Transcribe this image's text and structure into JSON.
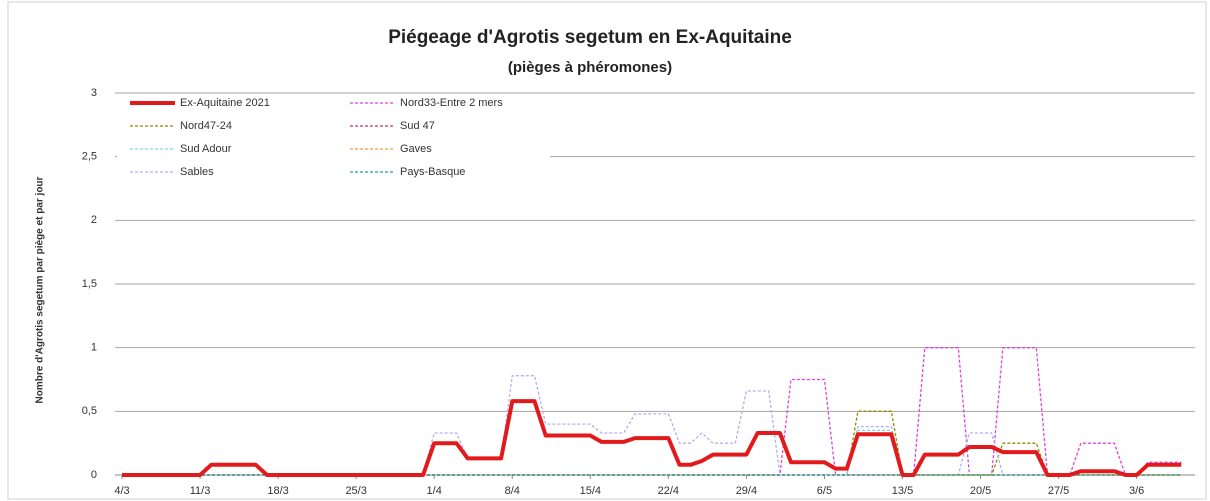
{
  "chart_data": {
    "type": "line",
    "title": "Piégeage d'Agrotis segetum en Ex-Aquitaine",
    "subtitle": "(pièges à phéromones)",
    "y_label": "Nombre d'Agrotis segetum par piège et par jour",
    "categories": [
      "4/3",
      null,
      null,
      null,
      null,
      null,
      null,
      "11/3",
      null,
      null,
      null,
      null,
      null,
      null,
      "18/3",
      null,
      null,
      null,
      null,
      null,
      null,
      "25/3",
      null,
      null,
      null,
      null,
      null,
      null,
      "1/4",
      null,
      null,
      null,
      null,
      null,
      null,
      "8/4",
      null,
      null,
      null,
      null,
      null,
      null,
      "15/4",
      null,
      null,
      null,
      null,
      null,
      null,
      "22/4",
      null,
      null,
      null,
      null,
      null,
      null,
      "29/4",
      null,
      null,
      null,
      null,
      null,
      null,
      "6/5",
      null,
      null,
      null,
      null,
      null,
      null,
      "13/5",
      null,
      null,
      null,
      null,
      null,
      null,
      "20/5",
      null,
      null,
      null,
      null,
      null,
      null,
      "27/5",
      null,
      null,
      null,
      null,
      null,
      null,
      "3/6",
      null,
      null,
      null,
      null
    ],
    "ylim": [
      0,
      3
    ],
    "yticks": [
      0,
      {
        "value": 0.5,
        "label": "0,5"
      },
      1,
      {
        "value": 1.5,
        "label": "1,5"
      },
      2,
      {
        "value": 2.5,
        "label": "2,5"
      },
      3
    ],
    "grid": true,
    "series": [
      {
        "name": "Ex-Aquitaine 2021",
        "color": "#e31a1c",
        "values": [
          0,
          0,
          0,
          0,
          0,
          0,
          0,
          0,
          0.08,
          0.08,
          0.08,
          0.08,
          0.08,
          0,
          0,
          0,
          0,
          0,
          0,
          0,
          0,
          0,
          0,
          0,
          0,
          0,
          0,
          0,
          0.25,
          0.25,
          0.25,
          0.13,
          0.13,
          0.13,
          0.13,
          0.58,
          0.58,
          0.58,
          0.31,
          0.31,
          0.31,
          0.31,
          0.31,
          0.26,
          0.26,
          0.26,
          0.29,
          0.29,
          0.29,
          0.29,
          0.08,
          0.08,
          0.11,
          0.16,
          0.16,
          0.16,
          0.16,
          0.33,
          0.33,
          0.33,
          0.1,
          0.1,
          0.1,
          0.1,
          0.05,
          0.05,
          0.32,
          0.32,
          0.32,
          0.32,
          0,
          0,
          0.16,
          0.16,
          0.16,
          0.16,
          0.22,
          0.22,
          0.22,
          0.18,
          0.18,
          0.18,
          0.18,
          0,
          0,
          0,
          0.03,
          0.03,
          0.03,
          0.03,
          0,
          0,
          0.08,
          0.08,
          0.08,
          0.08
        ]
      },
      {
        "name": "Nord33-Entre 2 mers",
        "color": "#e040e0",
        "values": [
          0,
          0,
          0,
          0,
          0,
          0,
          0,
          0,
          0,
          0,
          0,
          0,
          0,
          0,
          0,
          0,
          0,
          0,
          0,
          0,
          0,
          0,
          0,
          0,
          0,
          0,
          0,
          0,
          0,
          0,
          0,
          0,
          0,
          0,
          0,
          0,
          0,
          0,
          0,
          0,
          0,
          0,
          0,
          0,
          0,
          0,
          0,
          0,
          0,
          0,
          0,
          0,
          0,
          0,
          0,
          0,
          0,
          0,
          0,
          0,
          0.75,
          0.75,
          0.75,
          0.75,
          0,
          0,
          0,
          0,
          0,
          0,
          0,
          0,
          1,
          1,
          1,
          1,
          0,
          0,
          0,
          1,
          1,
          1,
          1,
          0,
          0,
          0,
          0.25,
          0.25,
          0.25,
          0.25,
          0,
          0,
          0.1,
          0.1,
          0.1,
          0.1
        ]
      },
      {
        "name": "Nord47-24",
        "color": "#8b8b00",
        "values": [
          0,
          0,
          0,
          0,
          0,
          0,
          0,
          0,
          0,
          0,
          0,
          0,
          0,
          0,
          0,
          0,
          0,
          0,
          0,
          0,
          0,
          0,
          0,
          0,
          0,
          0,
          0,
          0,
          0,
          0,
          0,
          0,
          0,
          0,
          0,
          0,
          0,
          0,
          0,
          0,
          0,
          0,
          0,
          0,
          0,
          0,
          0,
          0,
          0,
          0,
          0,
          0,
          0,
          0,
          0,
          0,
          0,
          0,
          0,
          0,
          0,
          0,
          0,
          0,
          0,
          0,
          0.5,
          0.5,
          0.5,
          0.5,
          0,
          0,
          0,
          0,
          0,
          0,
          0,
          0,
          0,
          0.25,
          0.25,
          0.25,
          0.25,
          0,
          0,
          0,
          0,
          0,
          0,
          0,
          0,
          0,
          0,
          0,
          0,
          0
        ]
      },
      {
        "name": "Sud 47",
        "color": "#c0306a",
        "values": [
          0,
          0,
          0,
          0,
          0,
          0,
          0,
          0,
          0,
          0,
          0,
          0,
          0,
          0,
          0,
          0,
          0,
          0,
          0,
          0,
          0,
          0,
          0,
          0,
          0,
          0,
          0,
          0,
          0,
          0,
          0,
          0,
          0,
          0,
          0,
          0,
          0,
          0,
          0,
          0,
          0,
          0,
          0,
          0,
          0,
          0,
          0,
          0,
          0,
          0,
          0,
          0,
          0,
          0,
          0,
          0,
          0,
          0,
          0,
          0,
          0,
          0,
          0,
          0,
          0,
          0,
          0,
          0,
          0,
          0,
          0,
          0,
          0,
          0,
          0,
          0,
          0,
          0,
          0,
          0,
          0,
          0,
          0,
          0,
          0,
          0,
          0,
          0,
          0,
          0,
          0,
          0,
          0,
          0,
          0,
          0
        ]
      },
      {
        "name": "Sud Adour",
        "color": "#7fd6e8",
        "values": [
          0,
          0,
          0,
          0,
          0,
          0,
          0,
          0,
          0,
          0,
          0,
          0,
          0,
          0,
          0,
          0,
          0,
          0,
          0,
          0,
          0,
          0,
          0,
          0,
          0,
          0,
          0,
          0,
          0,
          0,
          0,
          0,
          0,
          0,
          0,
          0,
          0,
          0,
          0,
          0,
          0,
          0,
          0,
          0,
          0,
          0,
          0,
          0,
          0,
          0,
          0,
          0,
          0,
          0,
          0,
          0,
          0,
          0,
          0,
          0,
          0,
          0,
          0,
          0,
          0,
          0,
          0.35,
          0.35,
          0.35,
          0.35,
          0,
          0,
          0,
          0,
          0,
          0,
          0,
          0,
          0,
          0,
          0,
          0,
          0,
          0,
          0,
          0,
          0,
          0,
          0,
          0,
          0,
          0,
          0,
          0,
          0,
          0
        ]
      },
      {
        "name": "Gaves",
        "color": "#f0a030",
        "values": [
          0,
          0,
          0,
          0,
          0,
          0,
          0,
          0,
          0,
          0,
          0,
          0,
          0,
          0,
          0,
          0,
          0,
          0,
          0,
          0,
          0,
          0,
          0,
          0,
          0,
          0,
          0,
          0,
          0,
          0,
          0,
          0,
          0,
          0,
          0,
          0,
          0,
          0,
          0,
          0,
          0,
          0,
          0,
          0,
          0,
          0,
          0,
          0,
          0,
          0,
          0,
          0,
          0,
          0,
          0,
          0,
          0,
          0,
          0,
          0,
          0,
          0,
          0,
          0,
          0,
          0,
          0,
          0,
          0,
          0,
          0,
          0,
          0,
          0,
          0,
          0,
          0,
          0,
          0,
          0,
          0,
          0,
          0,
          0,
          0,
          0,
          0,
          0,
          0,
          0,
          0,
          0,
          0,
          0,
          0,
          0
        ]
      },
      {
        "name": "Sables",
        "color": "#b0b0f0",
        "values": [
          0,
          0,
          0,
          0,
          0,
          0,
          0,
          0,
          0,
          0,
          0,
          0,
          0,
          0,
          0,
          0,
          0,
          0,
          0,
          0,
          0,
          0,
          0,
          0,
          0,
          0,
          0,
          0,
          0.33,
          0.33,
          0.33,
          0.13,
          0.13,
          0.13,
          0.13,
          0.78,
          0.78,
          0.78,
          0.4,
          0.4,
          0.4,
          0.4,
          0.4,
          0.33,
          0.33,
          0.33,
          0.48,
          0.48,
          0.48,
          0.48,
          0.25,
          0.25,
          0.33,
          0.25,
          0.25,
          0.25,
          0.66,
          0.66,
          0.66,
          0,
          0,
          0,
          0,
          0,
          0,
          0,
          0.38,
          0.38,
          0.38,
          0.38,
          0,
          0,
          0,
          0,
          0,
          0,
          0.33,
          0.33,
          0.33,
          0,
          0,
          0,
          0,
          0,
          0,
          0,
          0,
          0,
          0,
          0,
          0,
          0,
          0,
          0,
          0,
          0
        ]
      },
      {
        "name": "Pays-Basque",
        "color": "#20a090",
        "values": [
          0,
          0,
          0,
          0,
          0,
          0,
          0,
          0,
          0,
          0,
          0,
          0,
          0,
          0,
          0,
          0,
          0,
          0,
          0,
          0,
          0,
          0,
          0,
          0,
          0,
          0,
          0,
          0,
          0,
          0,
          0,
          0,
          0,
          0,
          0,
          0,
          0,
          0,
          0,
          0,
          0,
          0,
          0,
          0,
          0,
          0,
          0,
          0,
          0,
          0,
          0,
          0,
          0,
          0,
          0,
          0,
          0,
          0,
          0,
          0,
          0,
          0,
          0,
          0,
          0,
          0,
          0,
          0,
          0,
          0,
          0,
          0,
          0,
          0,
          0,
          0,
          0,
          0,
          0,
          0,
          0,
          0,
          0,
          0,
          0,
          0,
          0,
          0,
          0,
          0,
          0,
          0,
          0,
          0,
          0,
          0
        ]
      }
    ]
  }
}
